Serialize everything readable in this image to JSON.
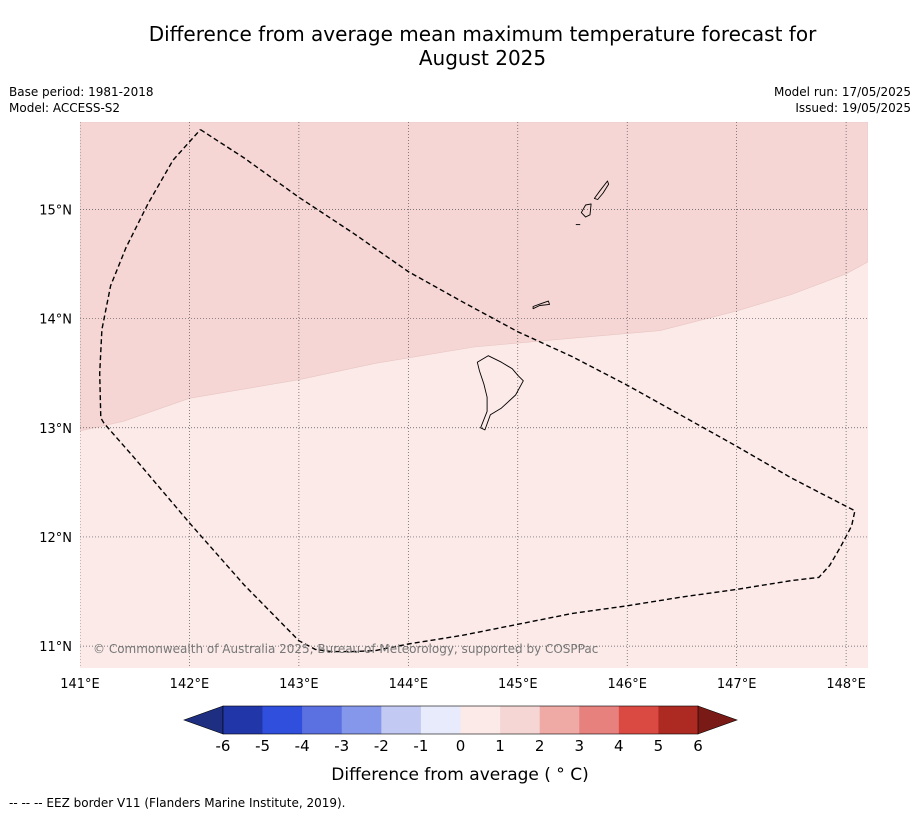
{
  "title_line1": "Difference from average mean maximum temperature forecast for",
  "title_line2": "August 2025",
  "meta_left": {
    "base_period": "Base period: 1981-2018",
    "model": "Model: ACCESS-S2"
  },
  "meta_right": {
    "model_run": "Model run: 17/05/2025",
    "issued": "Issued: 19/05/2025"
  },
  "map": {
    "extent": {
      "lon_min": 141.0,
      "lon_max": 148.2,
      "lat_min": 10.8,
      "lat_max": 15.8
    },
    "lat_ticks": [
      {
        "value": 15,
        "label": "15°N"
      },
      {
        "value": 14,
        "label": "14°N"
      },
      {
        "value": 13,
        "label": "13°N"
      },
      {
        "value": 12,
        "label": "12°N"
      },
      {
        "value": 11,
        "label": "11°N"
      }
    ],
    "lon_ticks": [
      {
        "value": 141,
        "label": "141°E"
      },
      {
        "value": 142,
        "label": "142°E"
      },
      {
        "value": 143,
        "label": "143°E"
      },
      {
        "value": 144,
        "label": "144°E"
      },
      {
        "value": 145,
        "label": "145°E"
      },
      {
        "value": 146,
        "label": "146°E"
      },
      {
        "value": 147,
        "label": "147°E"
      },
      {
        "value": 148,
        "label": "148°E"
      }
    ],
    "regions": [
      {
        "range": "1 to 2",
        "color": "#f5d6d4",
        "boundary_lonlat": [
          [
            141.0,
            12.97
          ],
          [
            141.4,
            13.06
          ],
          [
            142.0,
            13.27
          ],
          [
            143.0,
            13.44
          ],
          [
            143.7,
            13.59
          ],
          [
            144.6,
            13.74
          ],
          [
            145.5,
            13.82
          ],
          [
            146.3,
            13.89
          ],
          [
            147.0,
            14.07
          ],
          [
            147.5,
            14.22
          ],
          [
            148.0,
            14.41
          ],
          [
            148.2,
            14.52
          ]
        ]
      },
      {
        "range": "0 to 1",
        "color": "#fbeae8"
      }
    ],
    "eez_border_lonlat": [
      [
        142.1,
        15.73
      ],
      [
        142.5,
        15.47
      ],
      [
        143.0,
        15.11
      ],
      [
        143.5,
        14.78
      ],
      [
        144.0,
        14.43
      ],
      [
        144.5,
        14.15
      ],
      [
        145.0,
        13.88
      ],
      [
        145.5,
        13.65
      ],
      [
        146.0,
        13.39
      ],
      [
        146.5,
        13.11
      ],
      [
        147.0,
        12.83
      ],
      [
        147.5,
        12.54
      ],
      [
        148.08,
        12.24
      ],
      [
        148.05,
        12.1
      ],
      [
        147.95,
        11.91
      ],
      [
        147.85,
        11.74
      ],
      [
        147.75,
        11.63
      ],
      [
        147.5,
        11.6
      ],
      [
        147.0,
        11.52
      ],
      [
        146.5,
        11.45
      ],
      [
        146.0,
        11.37
      ],
      [
        145.5,
        11.3
      ],
      [
        145.0,
        11.2
      ],
      [
        144.5,
        11.1
      ],
      [
        144.0,
        11.02
      ],
      [
        143.7,
        10.96
      ],
      [
        143.5,
        10.95
      ],
      [
        143.3,
        10.95
      ],
      [
        143.15,
        10.97
      ],
      [
        143.0,
        11.05
      ],
      [
        142.5,
        11.56
      ],
      [
        142.0,
        12.13
      ],
      [
        141.5,
        12.72
      ],
      [
        141.22,
        13.04
      ],
      [
        141.19,
        13.09
      ],
      [
        141.18,
        13.5
      ],
      [
        141.2,
        13.9
      ],
      [
        141.28,
        14.3
      ],
      [
        141.42,
        14.65
      ],
      [
        141.62,
        15.05
      ],
      [
        141.85,
        15.45
      ],
      [
        142.1,
        15.73
      ]
    ],
    "islands": [
      {
        "name": "Guam",
        "shape_lonlat": [
          [
            144.63,
            13.6
          ],
          [
            144.73,
            13.66
          ],
          [
            144.85,
            13.6
          ],
          [
            144.95,
            13.54
          ],
          [
            145.0,
            13.48
          ],
          [
            145.05,
            13.43
          ],
          [
            144.98,
            13.3
          ],
          [
            144.85,
            13.18
          ],
          [
            144.75,
            13.12
          ],
          [
            144.7,
            12.98
          ],
          [
            144.66,
            13.0
          ],
          [
            144.72,
            13.15
          ],
          [
            144.72,
            13.28
          ],
          [
            144.69,
            13.4
          ],
          [
            144.65,
            13.52
          ]
        ]
      },
      {
        "name": "Rota",
        "shape_lonlat": [
          [
            145.14,
            14.11
          ],
          [
            145.22,
            14.14
          ],
          [
            145.28,
            14.16
          ],
          [
            145.29,
            14.13
          ],
          [
            145.2,
            14.12
          ],
          [
            145.14,
            14.09
          ]
        ]
      },
      {
        "name": "Tinian",
        "shape_lonlat": [
          [
            145.58,
            14.97
          ],
          [
            145.62,
            15.04
          ],
          [
            145.67,
            15.05
          ],
          [
            145.66,
            14.95
          ],
          [
            145.62,
            14.93
          ]
        ]
      },
      {
        "name": "Saipan",
        "shape_lonlat": [
          [
            145.7,
            15.1
          ],
          [
            145.75,
            15.17
          ],
          [
            145.82,
            15.26
          ],
          [
            145.83,
            15.23
          ],
          [
            145.78,
            15.15
          ],
          [
            145.73,
            15.09
          ]
        ]
      },
      {
        "name": "Aguijan",
        "shape_lonlat": [
          [
            145.53,
            14.86
          ],
          [
            145.57,
            14.86
          ]
        ]
      }
    ],
    "copyright": "© Commonwealth of Australia 2025, Bureau of Meteorology, supported by COSPPac"
  },
  "colorbar": {
    "ticks": [
      "-6",
      "-5",
      "-4",
      "-3",
      "-2",
      "-1",
      "0",
      "1",
      "2",
      "3",
      "4",
      "5",
      "6"
    ],
    "colors": [
      "#2136a8",
      "#2f4fdc",
      "#5b71e2",
      "#8597ea",
      "#c2c9f2",
      "#e8ebfb",
      "#fbeae8",
      "#f5d6d4",
      "#efaaa6",
      "#e7817d",
      "#da4a43",
      "#ad2a23"
    ],
    "under_color": "#1e2e80",
    "over_color": "#7a1a16",
    "label": "Difference from average ( ° C)"
  },
  "footnote": "--  --  -- EEZ border V11 (Flanders Marine Institute, 2019)."
}
